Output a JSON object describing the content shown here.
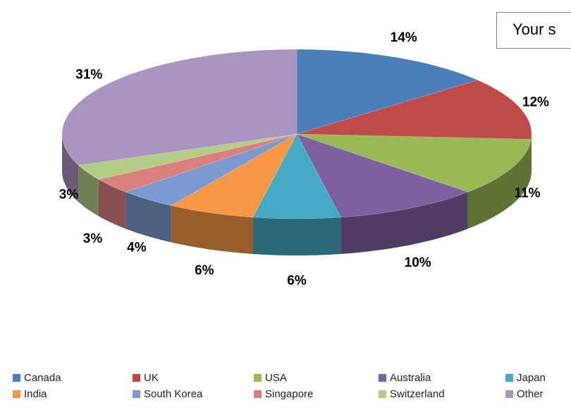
{
  "title_box": {
    "text": "Your s"
  },
  "chart_data": {
    "type": "pie",
    "title": "Your s",
    "categories": [
      "Canada",
      "UK",
      "USA",
      "Australia",
      "Japan",
      "India",
      "South Korea",
      "Singapore",
      "Switzerland",
      "Other"
    ],
    "values": [
      14,
      12,
      11,
      10,
      6,
      6,
      4,
      3,
      3,
      31
    ],
    "labels": [
      "14%",
      "12%",
      "11%",
      "10%",
      "6%",
      "6%",
      "4%",
      "3%",
      "3%",
      "31%"
    ],
    "colors": [
      "#4a7ebb",
      "#be4b48",
      "#98b954",
      "#7d60a0",
      "#46aac5",
      "#f79646",
      "#7b9bd0",
      "#d9807f",
      "#b2cd85",
      "#a993bf"
    ],
    "legend_position": "bottom",
    "style": "3d-pie"
  }
}
